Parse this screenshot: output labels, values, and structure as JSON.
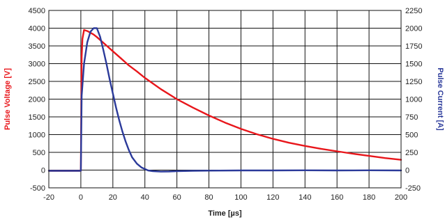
{
  "chart_data": {
    "type": "line",
    "title": "",
    "xlabel": "Time [µs]",
    "ylabel_left": "Pulse Voltage [V]",
    "ylabel_right": "Pulse Current [A]",
    "xlim": [
      -20,
      200
    ],
    "ylim_left": [
      -500,
      4500
    ],
    "ylim_right": [
      -250,
      2250
    ],
    "x_ticks": [
      "-20",
      "0",
      "20",
      "40",
      "60",
      "80",
      "100",
      "120",
      "140",
      "160",
      "180",
      "200"
    ],
    "y_ticks_left": [
      "-500",
      "0",
      "500",
      "1000",
      "1500",
      "2000",
      "2500",
      "3000",
      "3500",
      "4000",
      "4500"
    ],
    "y_ticks_right": [
      "-250",
      "0",
      "250",
      "500",
      "750",
      "1000",
      "1250",
      "1500",
      "1750",
      "2000",
      "2250"
    ],
    "grid": true,
    "colors": {
      "voltage": "#e8161b",
      "current": "#2b3a9a",
      "grid": "#111111"
    },
    "series": [
      {
        "axis": "left",
        "color": "#e8161b",
        "points": [
          [
            -20,
            -20
          ],
          [
            -10,
            -20
          ],
          [
            0,
            -20
          ],
          [
            0.5,
            3200
          ],
          [
            1,
            3700
          ],
          [
            2,
            3950
          ],
          [
            4,
            3920
          ],
          [
            6,
            3870
          ],
          [
            8,
            3820
          ],
          [
            10,
            3750
          ],
          [
            15,
            3550
          ],
          [
            20,
            3350
          ],
          [
            25,
            3150
          ],
          [
            30,
            2950
          ],
          [
            35,
            2780
          ],
          [
            40,
            2600
          ],
          [
            50,
            2280
          ],
          [
            60,
            2000
          ],
          [
            70,
            1760
          ],
          [
            80,
            1540
          ],
          [
            90,
            1340
          ],
          [
            100,
            1160
          ],
          [
            110,
            1010
          ],
          [
            120,
            880
          ],
          [
            130,
            770
          ],
          [
            140,
            680
          ],
          [
            150,
            600
          ],
          [
            160,
            530
          ],
          [
            170,
            460
          ],
          [
            180,
            400
          ],
          [
            190,
            340
          ],
          [
            200,
            290
          ]
        ]
      },
      {
        "axis": "right",
        "color": "#2b3a9a",
        "points": [
          [
            -20,
            -10
          ],
          [
            -10,
            -10
          ],
          [
            0,
            -10
          ],
          [
            0.5,
            1050
          ],
          [
            2,
            1500
          ],
          [
            4,
            1800
          ],
          [
            6,
            1950
          ],
          [
            8,
            2000
          ],
          [
            10,
            2000
          ],
          [
            12,
            1880
          ],
          [
            14,
            1700
          ],
          [
            16,
            1500
          ],
          [
            18,
            1280
          ],
          [
            20,
            1080
          ],
          [
            22,
            880
          ],
          [
            24,
            700
          ],
          [
            26,
            540
          ],
          [
            28,
            400
          ],
          [
            30,
            280
          ],
          [
            32,
            180
          ],
          [
            35,
            90
          ],
          [
            38,
            35
          ],
          [
            42,
            -5
          ],
          [
            45,
            -15
          ],
          [
            50,
            -22
          ],
          [
            55,
            -20
          ],
          [
            60,
            -15
          ],
          [
            70,
            -10
          ],
          [
            80,
            -8
          ],
          [
            100,
            -5
          ],
          [
            120,
            -5
          ],
          [
            140,
            -3
          ],
          [
            160,
            -5
          ],
          [
            180,
            -3
          ],
          [
            200,
            -5
          ]
        ]
      }
    ]
  }
}
